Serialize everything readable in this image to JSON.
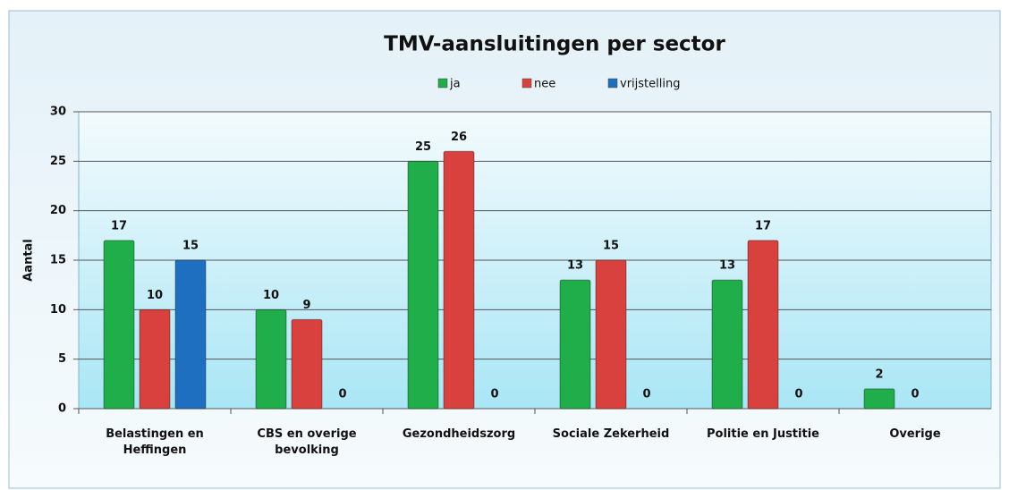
{
  "chart_data": {
    "type": "bar",
    "title": "TMV-aansluitingen per sector",
    "y_label": "Aantal",
    "categories": [
      "Belastingen en Heffingen",
      "CBS en overige bevolking",
      "Gezondheidszorg",
      "Sociale Zekerheid",
      "Politie en Justitie",
      "Overige"
    ],
    "series": [
      {
        "name": "ja",
        "color": "#1fae4a",
        "values": [
          17,
          10,
          25,
          13,
          13,
          2
        ]
      },
      {
        "name": "nee",
        "color": "#d9413e",
        "values": [
          10,
          9,
          26,
          15,
          17,
          0
        ]
      },
      {
        "name": "vrijstelling",
        "color": "#1f6fc0",
        "values": [
          15,
          0,
          0,
          0,
          0,
          null
        ]
      }
    ],
    "ylim": [
      0,
      30
    ],
    "yticks": [
      0,
      5,
      10,
      15,
      20,
      25,
      30
    ],
    "grid": true,
    "legend": "top"
  }
}
